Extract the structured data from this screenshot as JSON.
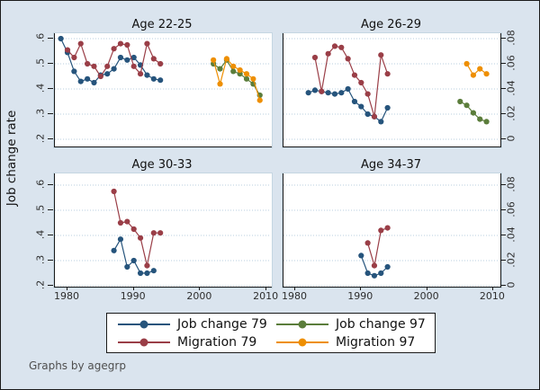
{
  "figure": {
    "y_axis_title": "Job change rate",
    "footer": "Graphs by agegrp",
    "colors": {
      "navy": "#26547c",
      "maroon": "#9a3e47",
      "green": "#5b7d3b",
      "orange": "#ee8f02",
      "background": "#dae4ee",
      "gridline": "#b9cfdf",
      "axis": "#1a1a1a"
    },
    "left_axis": {
      "label": "Job change rate",
      "tick_labels": [
        ".2",
        ".3",
        ".4",
        ".5",
        ".6"
      ],
      "tick_values": [
        0.2,
        0.3,
        0.4,
        0.5,
        0.6
      ],
      "range": [
        0.2,
        0.6
      ]
    },
    "right_axis": {
      "tick_labels": [
        "0",
        ".02",
        ".04",
        ".06",
        ".08"
      ],
      "tick_values": [
        0,
        0.02,
        0.04,
        0.06,
        0.08
      ],
      "range": [
        0,
        0.08
      ]
    },
    "x_axis": {
      "tick_labels": [
        "1980",
        "1990",
        "2000",
        "2010"
      ],
      "tick_values": [
        1980,
        1990,
        2000,
        2010
      ],
      "range": [
        1978,
        2011
      ]
    },
    "legend": {
      "items": [
        {
          "label": "Job change 79",
          "color": "navy"
        },
        {
          "label": "Job change 97",
          "color": "green"
        },
        {
          "label": "Migration 79",
          "color": "maroon"
        },
        {
          "label": "Migration 97",
          "color": "orange"
        }
      ]
    }
  },
  "chart_data": [
    {
      "type": "line",
      "title": "Age 22-25",
      "series": [
        {
          "name": "Job change 79",
          "color": "navy",
          "axis": "left",
          "x": [
            1979,
            1980,
            1981,
            1982,
            1983,
            1984,
            1985,
            1986,
            1987,
            1988,
            1989,
            1990,
            1991,
            1992,
            1993,
            1994
          ],
          "values": [
            0.6,
            0.545,
            0.47,
            0.43,
            0.44,
            0.425,
            0.455,
            0.46,
            0.48,
            0.525,
            0.515,
            0.525,
            0.495,
            0.455,
            0.44,
            0.435
          ]
        },
        {
          "name": "Migration 79",
          "color": "maroon",
          "axis": "right",
          "x": [
            1980,
            1981,
            1982,
            1983,
            1984,
            1985,
            1986,
            1987,
            1988,
            1989,
            1990,
            1991,
            1992,
            1993,
            1994
          ],
          "values": [
            0.071,
            0.065,
            0.076,
            0.06,
            0.058,
            0.05,
            0.058,
            0.072,
            0.076,
            0.075,
            0.058,
            0.052,
            0.076,
            0.064,
            0.06
          ]
        },
        {
          "name": "Job change 97",
          "color": "green",
          "axis": "left",
          "x": [
            2002,
            2003,
            2004,
            2005,
            2006,
            2007,
            2008,
            2009
          ],
          "values": [
            0.5,
            0.48,
            0.515,
            0.47,
            0.46,
            0.44,
            0.42,
            0.375
          ]
        },
        {
          "name": "Migration 97",
          "color": "orange",
          "axis": "right",
          "x": [
            2002,
            2003,
            2004,
            2005,
            2006,
            2007,
            2008,
            2009
          ],
          "values": [
            0.063,
            0.044,
            0.064,
            0.058,
            0.055,
            0.052,
            0.048,
            0.031
          ]
        }
      ]
    },
    {
      "type": "line",
      "title": "Age 26-29",
      "series": [
        {
          "name": "Job change 79",
          "color": "navy",
          "axis": "left",
          "x": [
            1982,
            1983,
            1984,
            1985,
            1986,
            1987,
            1988,
            1989,
            1990,
            1991,
            1992,
            1993,
            1994
          ],
          "values": [
            0.385,
            0.395,
            0.39,
            0.385,
            0.38,
            0.385,
            0.4,
            0.35,
            0.33,
            0.3,
            0.29,
            0.27,
            0.325
          ]
        },
        {
          "name": "Migration 79",
          "color": "maroon",
          "axis": "right",
          "x": [
            1983,
            1984,
            1985,
            1986,
            1987,
            1988,
            1989,
            1990,
            1991,
            1992,
            1993,
            1994
          ],
          "values": [
            0.065,
            0.038,
            0.068,
            0.074,
            0.073,
            0.064,
            0.051,
            0.045,
            0.036,
            0.018,
            0.067,
            0.052
          ]
        },
        {
          "name": "Job change 97",
          "color": "green",
          "axis": "left",
          "x": [
            2005,
            2006,
            2007,
            2008,
            2009
          ],
          "values": [
            0.35,
            0.335,
            0.305,
            0.28,
            0.27
          ]
        },
        {
          "name": "Migration 97",
          "color": "orange",
          "axis": "right",
          "x": [
            2006,
            2007,
            2008,
            2009
          ],
          "values": [
            0.06,
            0.051,
            0.056,
            0.052
          ]
        }
      ]
    },
    {
      "type": "line",
      "title": "Age 30-33",
      "series": [
        {
          "name": "Job change 79",
          "color": "navy",
          "axis": "left",
          "x": [
            1987,
            1988,
            1989,
            1990,
            1991,
            1992,
            1993
          ],
          "values": [
            0.34,
            0.385,
            0.275,
            0.3,
            0.25,
            0.25,
            0.26
          ]
        },
        {
          "name": "Migration 79",
          "color": "maroon",
          "axis": "right",
          "x": [
            1987,
            1988,
            1989,
            1990,
            1991,
            1992,
            1993,
            1994
          ],
          "values": [
            0.075,
            0.05,
            0.051,
            0.045,
            0.038,
            0.016,
            0.042,
            0.042
          ]
        }
      ]
    },
    {
      "type": "line",
      "title": "Age 34-37",
      "series": [
        {
          "name": "Job change 79",
          "color": "navy",
          "axis": "left",
          "x": [
            1990,
            1991,
            1992,
            1993,
            1994
          ],
          "values": [
            0.32,
            0.25,
            0.24,
            0.25,
            0.275
          ]
        },
        {
          "name": "Migration 79",
          "color": "maroon",
          "axis": "right",
          "x": [
            1991,
            1992,
            1993,
            1994
          ],
          "values": [
            0.034,
            0.016,
            0.044,
            0.046
          ]
        }
      ]
    }
  ]
}
